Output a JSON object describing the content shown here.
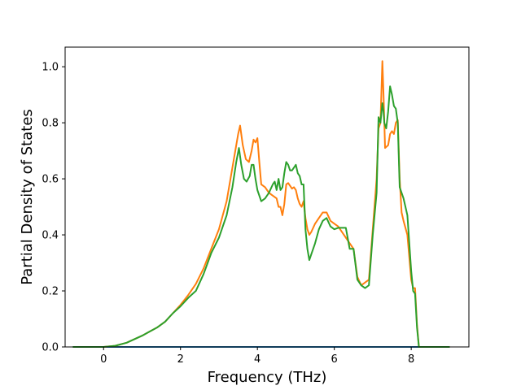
{
  "chart_data": {
    "type": "line",
    "xlabel": "Frequency (THz)",
    "ylabel": "Partial Density of States",
    "xlim": [
      -1.0,
      9.5
    ],
    "ylim": [
      0.0,
      1.07
    ],
    "xticks": [
      0,
      2,
      4,
      6,
      8
    ],
    "yticks": [
      0.0,
      0.2,
      0.4,
      0.6,
      0.8,
      1.0
    ],
    "xtick_labels": [
      "0",
      "2",
      "4",
      "6",
      "8"
    ],
    "ytick_labels": [
      "0.0",
      "0.2",
      "0.4",
      "0.6",
      "0.8",
      "1.0"
    ],
    "grid": false,
    "series": [
      {
        "color": "#1f77b4",
        "x": [
          -0.8,
          0.0,
          8.2,
          9.0
        ],
        "y": [
          0.0,
          0.0,
          0.0,
          0.0
        ]
      },
      {
        "color": "#ff7f0e",
        "x": [
          -0.8,
          0.0,
          0.3,
          0.6,
          1.0,
          1.2,
          1.4,
          1.6,
          1.8,
          2.0,
          2.2,
          2.4,
          2.6,
          2.8,
          3.0,
          3.2,
          3.35,
          3.5,
          3.55,
          3.62,
          3.7,
          3.78,
          3.85,
          3.9,
          3.95,
          4.0,
          4.05,
          4.1,
          4.2,
          4.3,
          4.4,
          4.5,
          4.55,
          4.6,
          4.65,
          4.7,
          4.75,
          4.8,
          4.85,
          4.9,
          4.95,
          5.0,
          5.05,
          5.1,
          5.15,
          5.2,
          5.25,
          5.3,
          5.35,
          5.4,
          5.5,
          5.6,
          5.7,
          5.8,
          5.9,
          6.0,
          6.1,
          6.2,
          6.3,
          6.4,
          6.5,
          6.6,
          6.7,
          6.8,
          6.9,
          7.0,
          7.1,
          7.15,
          7.2,
          7.25,
          7.28,
          7.32,
          7.36,
          7.4,
          7.45,
          7.5,
          7.55,
          7.6,
          7.65,
          7.7,
          7.75,
          7.8,
          7.9,
          8.0,
          8.05,
          8.1,
          8.15,
          8.2,
          8.25,
          9.0
        ],
        "y": [
          0.0,
          0.0,
          0.004,
          0.015,
          0.04,
          0.055,
          0.07,
          0.09,
          0.12,
          0.15,
          0.185,
          0.225,
          0.28,
          0.35,
          0.42,
          0.52,
          0.64,
          0.76,
          0.79,
          0.72,
          0.67,
          0.66,
          0.7,
          0.74,
          0.73,
          0.745,
          0.66,
          0.58,
          0.57,
          0.55,
          0.54,
          0.53,
          0.5,
          0.5,
          0.47,
          0.51,
          0.58,
          0.585,
          0.575,
          0.565,
          0.57,
          0.56,
          0.53,
          0.51,
          0.5,
          0.52,
          0.46,
          0.42,
          0.4,
          0.41,
          0.44,
          0.46,
          0.48,
          0.48,
          0.45,
          0.44,
          0.43,
          0.41,
          0.39,
          0.37,
          0.35,
          0.25,
          0.22,
          0.23,
          0.24,
          0.42,
          0.6,
          0.78,
          0.8,
          1.02,
          0.9,
          0.71,
          0.715,
          0.72,
          0.76,
          0.77,
          0.76,
          0.8,
          0.81,
          0.6,
          0.48,
          0.45,
          0.4,
          0.24,
          0.21,
          0.21,
          0.08,
          0.0,
          0.0,
          0.0
        ]
      },
      {
        "color": "#2ca02c",
        "x": [
          -0.8,
          0.0,
          0.3,
          0.6,
          1.0,
          1.2,
          1.4,
          1.6,
          1.8,
          2.0,
          2.2,
          2.4,
          2.6,
          2.8,
          3.0,
          3.2,
          3.35,
          3.45,
          3.52,
          3.58,
          3.65,
          3.72,
          3.8,
          3.85,
          3.9,
          3.95,
          4.0,
          4.1,
          4.2,
          4.3,
          4.4,
          4.45,
          4.5,
          4.55,
          4.6,
          4.65,
          4.7,
          4.75,
          4.8,
          4.85,
          4.9,
          4.95,
          5.0,
          5.05,
          5.1,
          5.15,
          5.2,
          5.25,
          5.3,
          5.35,
          5.4,
          5.5,
          5.6,
          5.7,
          5.8,
          5.9,
          6.0,
          6.1,
          6.2,
          6.3,
          6.4,
          6.5,
          6.6,
          6.7,
          6.8,
          6.9,
          7.0,
          7.1,
          7.15,
          7.2,
          7.25,
          7.28,
          7.3,
          7.35,
          7.4,
          7.45,
          7.5,
          7.55,
          7.6,
          7.65,
          7.7,
          7.8,
          7.9,
          8.0,
          8.05,
          8.1,
          8.15,
          8.2,
          8.25,
          9.0
        ],
        "y": [
          0.0,
          0.0,
          0.004,
          0.015,
          0.04,
          0.055,
          0.07,
          0.09,
          0.12,
          0.145,
          0.175,
          0.2,
          0.26,
          0.335,
          0.39,
          0.47,
          0.57,
          0.66,
          0.71,
          0.65,
          0.6,
          0.59,
          0.61,
          0.65,
          0.65,
          0.6,
          0.56,
          0.52,
          0.53,
          0.55,
          0.58,
          0.59,
          0.56,
          0.6,
          0.56,
          0.57,
          0.62,
          0.66,
          0.65,
          0.63,
          0.63,
          0.64,
          0.65,
          0.62,
          0.61,
          0.58,
          0.58,
          0.42,
          0.35,
          0.31,
          0.33,
          0.37,
          0.42,
          0.45,
          0.46,
          0.43,
          0.42,
          0.425,
          0.425,
          0.425,
          0.35,
          0.35,
          0.24,
          0.22,
          0.21,
          0.22,
          0.4,
          0.55,
          0.82,
          0.8,
          0.87,
          0.84,
          0.8,
          0.78,
          0.84,
          0.93,
          0.9,
          0.86,
          0.85,
          0.8,
          0.57,
          0.53,
          0.47,
          0.27,
          0.2,
          0.19,
          0.07,
          0.0,
          0.0,
          0.0
        ]
      }
    ]
  }
}
